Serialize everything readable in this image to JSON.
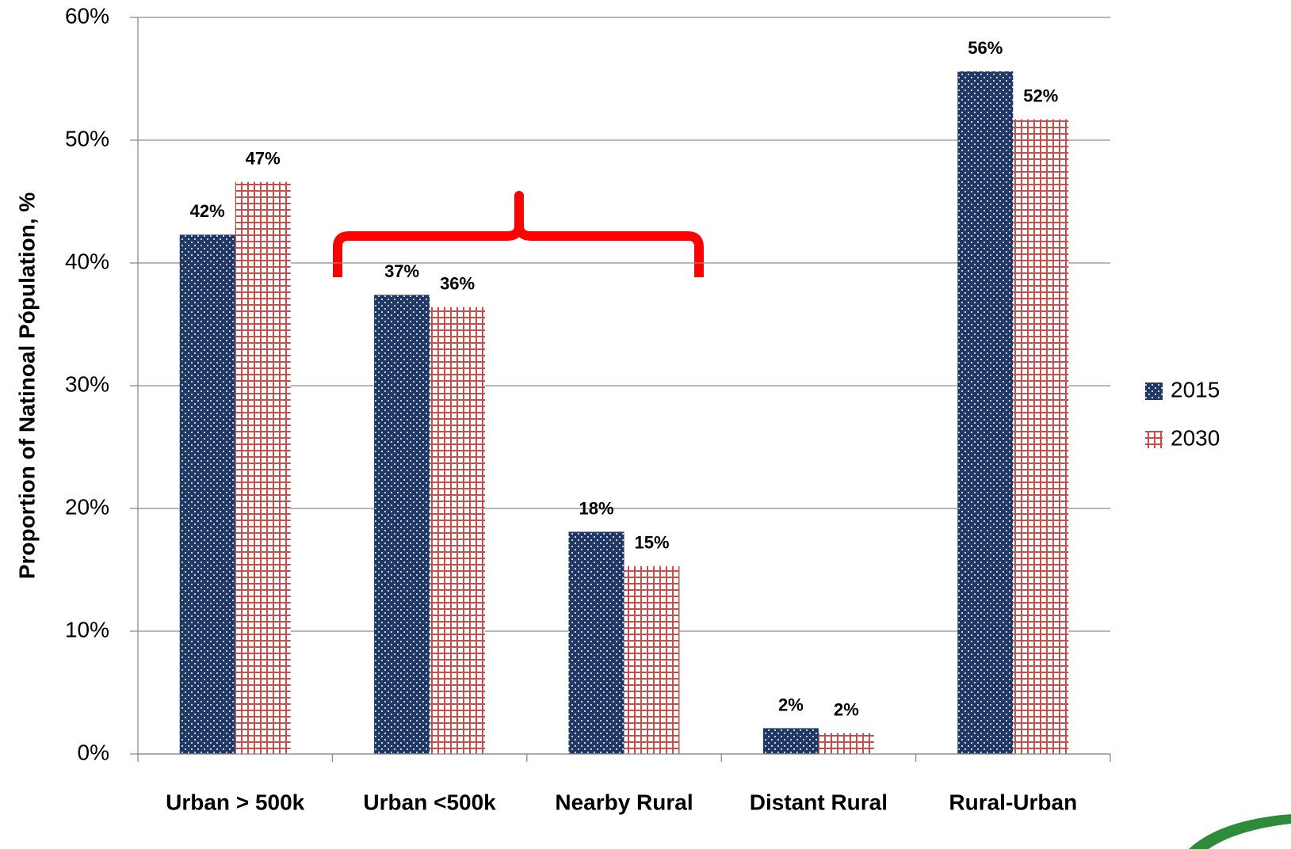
{
  "chart_data": {
    "type": "bar",
    "y_label": "Proportion of Natinoal Pópulation, %",
    "categories": [
      "Urban > 500k",
      "Urban <500k",
      "Nearby Rural",
      "Distant Rural",
      "Rural-Urban"
    ],
    "series": [
      {
        "name": "2015",
        "color": "#1f3864",
        "values": [
          42.3,
          37.4,
          18.1,
          2.1,
          55.6
        ],
        "value_labels": [
          "42%",
          "37%",
          "18%",
          "2%",
          "56%"
        ]
      },
      {
        "name": "2030",
        "color": "#c0504d",
        "values": [
          46.6,
          36.4,
          15.3,
          1.7,
          51.7
        ],
        "value_labels": [
          "47%",
          "36%",
          "15%",
          "2%",
          "52%"
        ]
      }
    ],
    "ylim": [
      0,
      60
    ],
    "yticks": [
      {
        "value": 0,
        "label": "0%"
      },
      {
        "value": 10,
        "label": "10%"
      },
      {
        "value": 20,
        "label": "20%"
      },
      {
        "value": 30,
        "label": "30%"
      },
      {
        "value": 40,
        "label": "40%"
      },
      {
        "value": 50,
        "label": "50%"
      },
      {
        "value": 60,
        "label": "60%"
      }
    ],
    "grid": true,
    "legend": "right"
  }
}
